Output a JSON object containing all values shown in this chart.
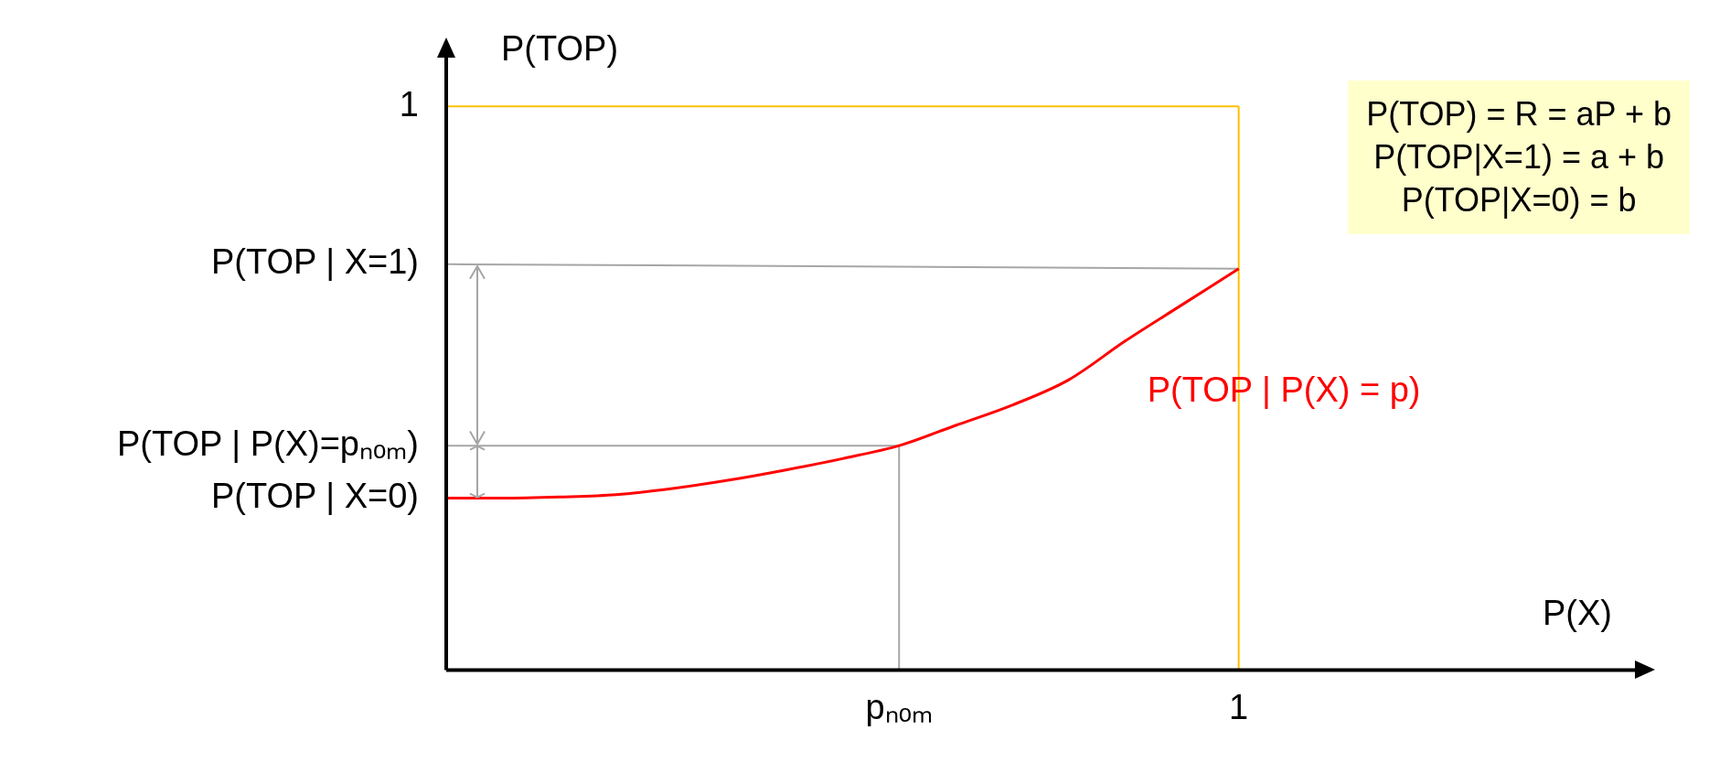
{
  "chart_data": {
    "type": "line",
    "xlabel": "P(X)",
    "ylabel": "P(TOP)",
    "categories": [
      null,
      null,
      null,
      null,
      null,
      null,
      null,
      null,
      "pₙₒₘ",
      null,
      null,
      null,
      null,
      null,
      "1",
      null,
      null,
      null,
      null,
      null,
      null,
      null
    ],
    "ylim": [
      0,
      1.09
    ],
    "yticks": [
      {
        "value": 0.305,
        "label": "P(TOP | X=0)"
      },
      {
        "value": 0.398,
        "label": "P(TOP | P(X)=pₙₒₘ)"
      },
      {
        "value": 0.72,
        "label": "P(TOP | X=1)"
      },
      1
    ],
    "grid": false,
    "legend": false,
    "marker": "none",
    "series": [
      {
        "name": "P(TOP | P(X) = p)",
        "color": "#ff0000",
        "values": [
          0.305,
          0.305,
          0.307,
          0.311,
          0.322,
          0.337,
          0.355,
          0.375,
          0.398,
          0.434,
          0.47,
          0.515,
          0.584,
          0.648,
          0.712,
          null,
          null,
          null,
          null,
          null,
          null,
          null
        ]
      },
      {
        "color": "#a6a6a6",
        "values": [
          0.72,
          null,
          null,
          null,
          null,
          null,
          null,
          null,
          null,
          null,
          null,
          null,
          null,
          null,
          0.712,
          null,
          null,
          null,
          null,
          null,
          null,
          null
        ]
      },
      {
        "color": "#a6a6a6",
        "values": [
          0.398,
          null,
          null,
          null,
          null,
          null,
          null,
          null,
          0.398,
          null,
          null,
          null,
          null,
          null,
          null,
          null,
          null,
          null,
          null,
          null,
          null,
          null
        ]
      },
      {
        "color": "#a6a6a6",
        "x": [
          "pₙₒₘ",
          "pₙₒₘ"
        ],
        "values": [
          0.398,
          0
        ]
      },
      {
        "color": "#ffc000",
        "values": [
          1,
          null,
          null,
          null,
          null,
          null,
          null,
          null,
          null,
          null,
          null,
          null,
          null,
          null,
          1,
          null,
          null,
          null,
          null,
          null,
          null,
          null
        ]
      },
      {
        "color": "#ffc000",
        "x": [
          "1",
          "1"
        ],
        "values": [
          1,
          0
        ]
      }
    ],
    "annotations": [
      "P(TOP) = R = aP + b",
      "P(TOP|X=1) = a + b",
      "P(TOP|X=0) = b"
    ]
  }
}
